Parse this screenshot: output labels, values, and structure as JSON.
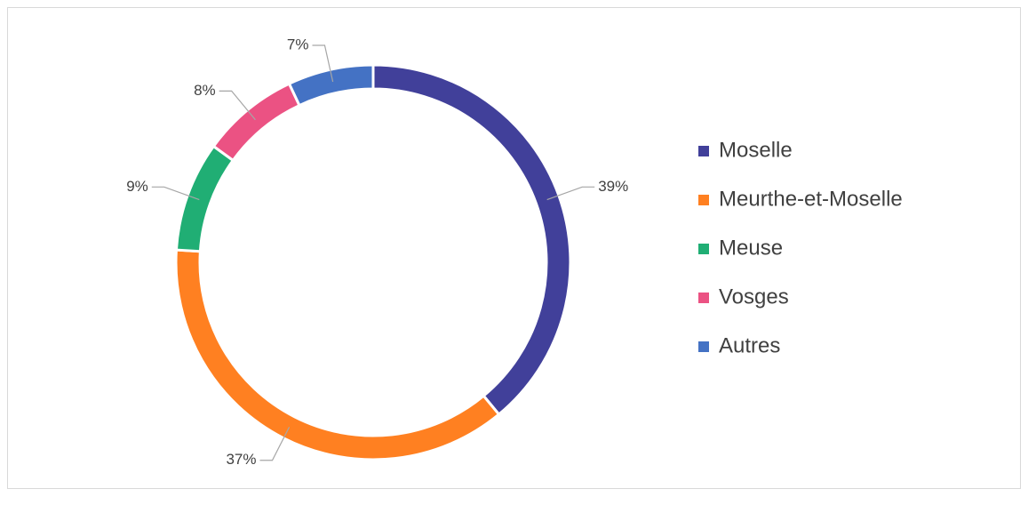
{
  "chart_data": {
    "type": "donut",
    "categories": [
      "Moselle",
      "Meurthe-et-Moselle",
      "Meuse",
      "Vosges",
      "Autres"
    ],
    "values": [
      39,
      37,
      9,
      8,
      7
    ],
    "value_labels": [
      "39%",
      "37%",
      "9%",
      "8%",
      "7%"
    ],
    "colors": [
      "#41409A",
      "#FF8021",
      "#20AE74",
      "#EB5283",
      "#4472C4"
    ],
    "legend": "right"
  }
}
